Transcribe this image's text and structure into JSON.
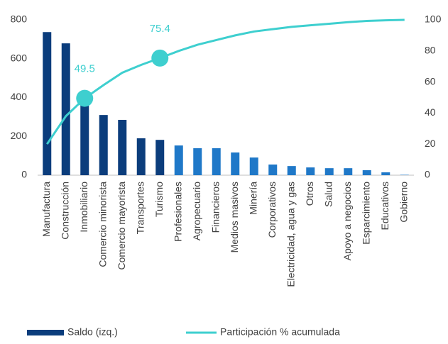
{
  "chart_data": {
    "type": "bar-line",
    "categories": [
      "Manufactura",
      "Construcción",
      "Inmobiliario",
      "Comercio minorista",
      "Comercio mayorista",
      "Transportes",
      "Turismo",
      "Profesionales",
      "Agropecuario",
      "Financieros",
      "Medios masivos",
      "Minería",
      "Corporativos",
      "Electricidad, agua y gas",
      "Otros",
      "Salud",
      "Apoyo a negocios",
      "Esparcimiento",
      "Educativos",
      "Gobierno"
    ],
    "series": [
      {
        "name": "Saldo (izq.)",
        "type": "bar",
        "color": "#0b3d7c",
        "colors": [
          "#0b3d7c",
          "#0b3d7c",
          "#0b3d7c",
          "#0b3d7c",
          "#0b3d7c",
          "#0b3d7c",
          "#0b3d7c",
          "#1f78c8",
          "#1f78c8",
          "#1f78c8",
          "#1f78c8",
          "#1f78c8",
          "#1f78c8",
          "#1f78c8",
          "#1f78c8",
          "#1f78c8",
          "#1f78c8",
          "#1f78c8",
          "#1f78c8",
          "#1f78c8"
        ],
        "values": [
          737,
          679,
          380,
          310,
          285,
          190,
          182,
          153,
          139,
          139,
          117,
          91,
          55,
          47,
          40,
          36,
          36,
          26,
          15,
          2
        ]
      },
      {
        "name": "Participación % acumulada",
        "type": "line",
        "axis": "y2",
        "color": "#3ecfcf",
        "values": [
          20,
          38,
          49.5,
          58,
          66,
          71,
          75.4,
          80,
          84,
          87,
          90,
          92.5,
          94,
          95.5,
          96.5,
          97.5,
          98.5,
          99.3,
          99.7,
          100
        ],
        "highlight": [
          2,
          6
        ]
      }
    ],
    "ylim": [
      0,
      800
    ],
    "yticks": [
      0,
      200,
      400,
      600,
      800
    ],
    "y2lim": [
      0,
      100
    ],
    "y2ticks": [
      0,
      20,
      40,
      60,
      80,
      100
    ],
    "legend": "bottom"
  }
}
